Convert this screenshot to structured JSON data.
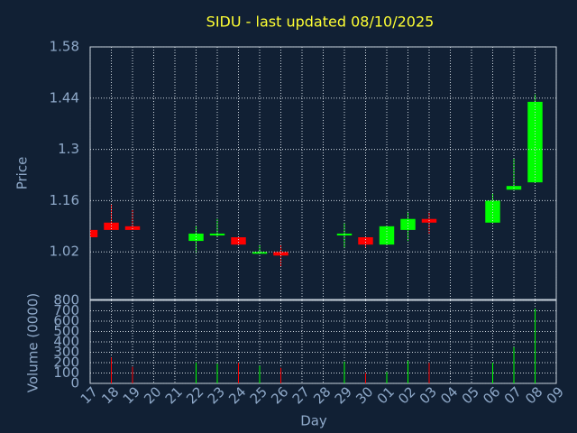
{
  "chart_data": [
    {
      "type": "candlestick",
      "title": "SIDU - last updated 08/10/2025",
      "y_label": "Price",
      "open": [
        1.08,
        1.1,
        1.09,
        null,
        null,
        1.05,
        1.065,
        1.06,
        1.015,
        1.02,
        null,
        null,
        1.065,
        1.06,
        1.04,
        1.08,
        1.11,
        null,
        null,
        1.1,
        1.19,
        1.21,
        null
      ],
      "high": [
        1.08,
        1.15,
        1.135,
        null,
        null,
        1.09,
        1.11,
        1.06,
        1.04,
        1.04,
        null,
        null,
        1.1,
        1.06,
        1.09,
        1.13,
        1.13,
        null,
        null,
        1.18,
        1.275,
        1.45,
        null
      ],
      "low": [
        1.06,
        1.08,
        1.08,
        null,
        null,
        1.015,
        1.06,
        1.04,
        1.015,
        0.98,
        null,
        null,
        1.03,
        1.03,
        1.04,
        1.05,
        1.07,
        null,
        null,
        1.1,
        1.19,
        1.21,
        null
      ],
      "close": [
        1.06,
        1.08,
        1.08,
        null,
        null,
        1.07,
        1.07,
        1.04,
        1.02,
        1.01,
        null,
        null,
        1.07,
        1.04,
        1.09,
        1.11,
        1.1,
        null,
        null,
        1.16,
        1.2,
        1.43,
        null
      ],
      "up_color": "#00ff00",
      "down_color": "#ff0000",
      "ylim": [
        0.89,
        1.58
      ],
      "yticks": [
        1.02,
        1.16,
        1.3,
        1.44,
        1.58
      ],
      "grid": true
    },
    {
      "type": "bar",
      "y_label": "Volume (0000)",
      "x_label": "Day",
      "categories": [
        "17",
        "18",
        "19",
        "20",
        "21",
        "22",
        "23",
        "24",
        "25",
        "26",
        "27",
        "28",
        "29",
        "30",
        "01",
        "02",
        "03",
        "04",
        "05",
        "06",
        "07",
        "08",
        "09"
      ],
      "values": [
        0,
        250,
        160,
        null,
        null,
        200,
        190,
        200,
        170,
        150,
        null,
        null,
        210,
        100,
        110,
        220,
        200,
        null,
        null,
        200,
        350,
        720,
        null
      ],
      "ylim": [
        0,
        800
      ],
      "yticks": [
        0,
        100,
        200,
        300,
        400,
        500,
        600,
        700,
        800
      ],
      "grid": true
    }
  ]
}
